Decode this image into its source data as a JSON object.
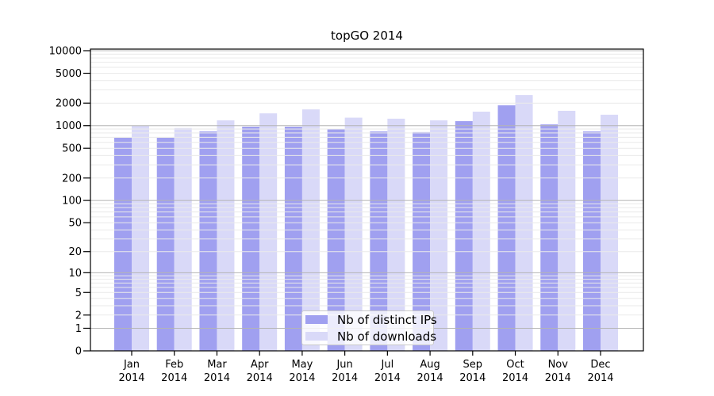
{
  "figure": {
    "background": "#ffffff"
  },
  "chart_data": {
    "type": "bar",
    "title": "topGO 2014",
    "y_scale": "log1p",
    "ylim": [
      0,
      10000
    ],
    "y_ticks": [
      10000,
      5000,
      2000,
      1000,
      500,
      200,
      100,
      50,
      20,
      10,
      5,
      2,
      1,
      0
    ],
    "categories": [
      "Jan",
      "Feb",
      "Mar",
      "Apr",
      "May",
      "Jun",
      "Jul",
      "Aug",
      "Sep",
      "Oct",
      "Nov",
      "Dec"
    ],
    "x_year": "2014",
    "series": [
      {
        "name": "Nb of distinct IPs",
        "color": "#a0a0f0",
        "values": [
          690,
          690,
          840,
          970,
          970,
          900,
          840,
          820,
          1150,
          1870,
          1040,
          840
        ]
      },
      {
        "name": "Nb of downloads",
        "color": "#d9d9f8",
        "values": [
          1000,
          930,
          1180,
          1460,
          1650,
          1280,
          1240,
          1180,
          1540,
          2560,
          1580,
          1400
        ]
      }
    ],
    "grid": true,
    "legend_position": "bottom-center-inside",
    "colors": {
      "grid_minor": "#eaeaea",
      "grid_major": "#b4b4b4",
      "frame": "#000000",
      "tick": "#000000",
      "legend_border": "#c9c9c9"
    }
  }
}
